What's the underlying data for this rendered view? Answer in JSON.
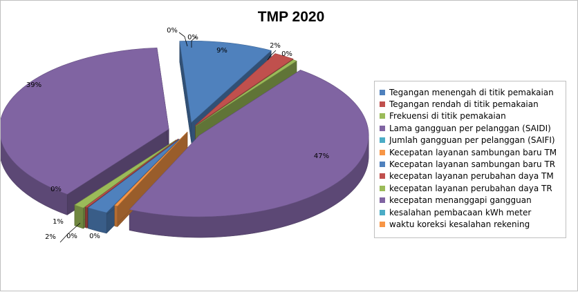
{
  "chart_data": {
    "type": "pie",
    "title": "TMP 2020",
    "legend_position": "right",
    "slices": [
      {
        "name": "Tegangan menengah di titik pemakaian",
        "value": 9,
        "label": "9%",
        "color": "#4f81bd"
      },
      {
        "name": "Tegangan rendah di titik pemakaian",
        "value": 2,
        "label": "2%",
        "color": "#c0504d"
      },
      {
        "name": "Frekuensi di titik pemakaian",
        "value": 0.4,
        "label": "0%",
        "color": "#9bbb59"
      },
      {
        "name": "Lama gangguan per pelanggan (SAIDI)",
        "value": 47,
        "label": "47%",
        "color": "#8064a2"
      },
      {
        "name": "Jumlah gangguan per pelanggan (SAIFI)",
        "value": 0,
        "label": "0%",
        "color": "#4bacc6"
      },
      {
        "name": "Kecepatan layanan sambungan baru TM",
        "value": 0.3,
        "label": "0%",
        "color": "#f79646"
      },
      {
        "name": "Kecepatan layanan sambungan baru TR",
        "value": 2,
        "label": "2%",
        "color": "#4f81bd"
      },
      {
        "name": "kecepatan layanan perubahan daya TM",
        "value": 0.2,
        "label": "0%",
        "color": "#c0504d"
      },
      {
        "name": "kecepatan layanan perubahan daya TR",
        "value": 1,
        "label": "1%",
        "color": "#9bbb59"
      },
      {
        "name": "kecepatan menanggapi gangguan",
        "value": 39,
        "label": "39%",
        "color": "#8064a2"
      },
      {
        "name": "kesalahan pembacaan kWh meter",
        "value": 0,
        "label": "0%",
        "color": "#4bacc6"
      },
      {
        "name": "waktu koreksi kesalahan rekening",
        "value": 0,
        "label": "0%",
        "color": "#f79646"
      }
    ]
  }
}
